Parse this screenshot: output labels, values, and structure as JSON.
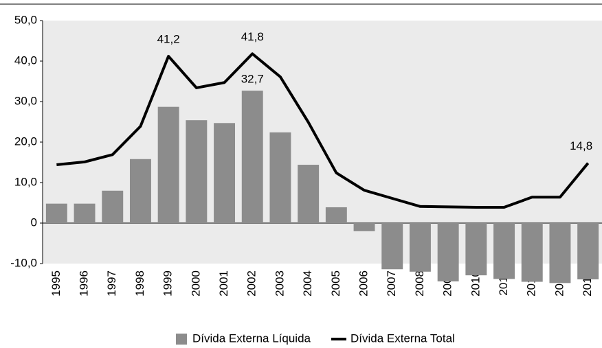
{
  "chart_data": {
    "type": "bar-line",
    "categories": [
      "1995",
      "1996",
      "1997",
      "1998",
      "1999",
      "2000",
      "2001",
      "2002",
      "2003",
      "2004",
      "2005",
      "2006",
      "2007",
      "2008",
      "2009",
      "2010",
      "2011",
      "2012",
      "2013",
      "2014"
    ],
    "series": [
      {
        "name": "Dívida Externa Líquida",
        "type": "bar",
        "color": "#8c8c8c",
        "values": [
          4.8,
          4.8,
          8.0,
          15.8,
          28.7,
          25.4,
          24.7,
          32.7,
          22.4,
          14.4,
          3.9,
          -2.0,
          -11.4,
          -12.0,
          -14.4,
          -12.9,
          -13.8,
          -14.5,
          -14.8,
          -13.9
        ],
        "value_labels": [
          null,
          null,
          null,
          null,
          null,
          null,
          null,
          "32,7",
          null,
          null,
          null,
          null,
          null,
          null,
          null,
          null,
          null,
          null,
          null,
          null
        ]
      },
      {
        "name": "Dívida Externa Total",
        "type": "line",
        "color": "#000000",
        "values": [
          14.4,
          15.1,
          16.9,
          23.9,
          41.2,
          33.4,
          34.7,
          41.8,
          36.1,
          24.9,
          12.4,
          8.1,
          6.1,
          4.1,
          4.0,
          3.9,
          3.9,
          6.4,
          6.4,
          14.8
        ],
        "value_labels": [
          null,
          null,
          null,
          null,
          "41,2",
          null,
          null,
          "41,8",
          null,
          null,
          null,
          null,
          null,
          null,
          null,
          null,
          null,
          null,
          null,
          "14,8"
        ]
      }
    ],
    "ylim": [
      -15,
      50
    ],
    "yticks": [
      {
        "value": -10,
        "label": "-10,0"
      },
      0,
      {
        "value": 10,
        "label": "10,0"
      },
      {
        "value": 20,
        "label": "20,0"
      },
      {
        "value": 30,
        "label": "30,0"
      },
      {
        "value": 40,
        "label": "40,0"
      },
      {
        "value": 50,
        "label": "50,0"
      }
    ],
    "background": "#ebebeb"
  }
}
